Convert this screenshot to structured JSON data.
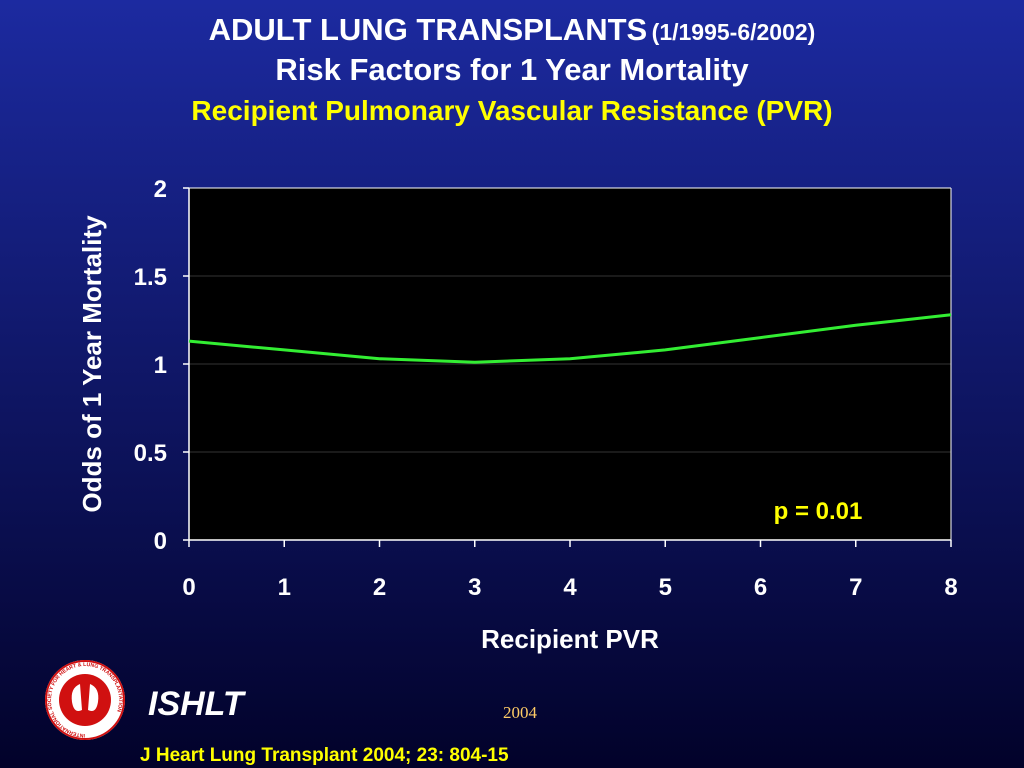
{
  "slide": {
    "title": "ADULT LUNG TRANSPLANTS",
    "title_dates": "(1/1995-6/2002)",
    "subtitle": "Risk Factors for 1 Year Mortality",
    "topic": "Recipient Pulmonary Vascular Resistance (PVR)"
  },
  "chart_data": {
    "type": "line",
    "x": [
      0,
      1,
      2,
      3,
      4,
      5,
      6,
      7,
      8
    ],
    "values": [
      1.13,
      1.08,
      1.03,
      1.01,
      1.03,
      1.08,
      1.15,
      1.22,
      1.28
    ],
    "color": "#33ee33",
    "xlim": [
      0,
      8
    ],
    "xticks": [
      0,
      1,
      2,
      3,
      4,
      5,
      6,
      7,
      8
    ],
    "ylim": [
      0,
      2
    ],
    "yticks": [
      0,
      0.5,
      1,
      1.5,
      2
    ],
    "grid": true,
    "xlabel": "Recipient PVR",
    "ylabel": "Odds of 1 Year Mortality",
    "annotation": "p = 0.01"
  },
  "footer": {
    "logo_text": "INTERNATIONAL SOCIETY FOR HEART & LUNG TRANSPLANTATION",
    "org": "ISHLT",
    "year": "2004",
    "citation": "J Heart Lung Transplant 2004; 23: 804-15"
  }
}
